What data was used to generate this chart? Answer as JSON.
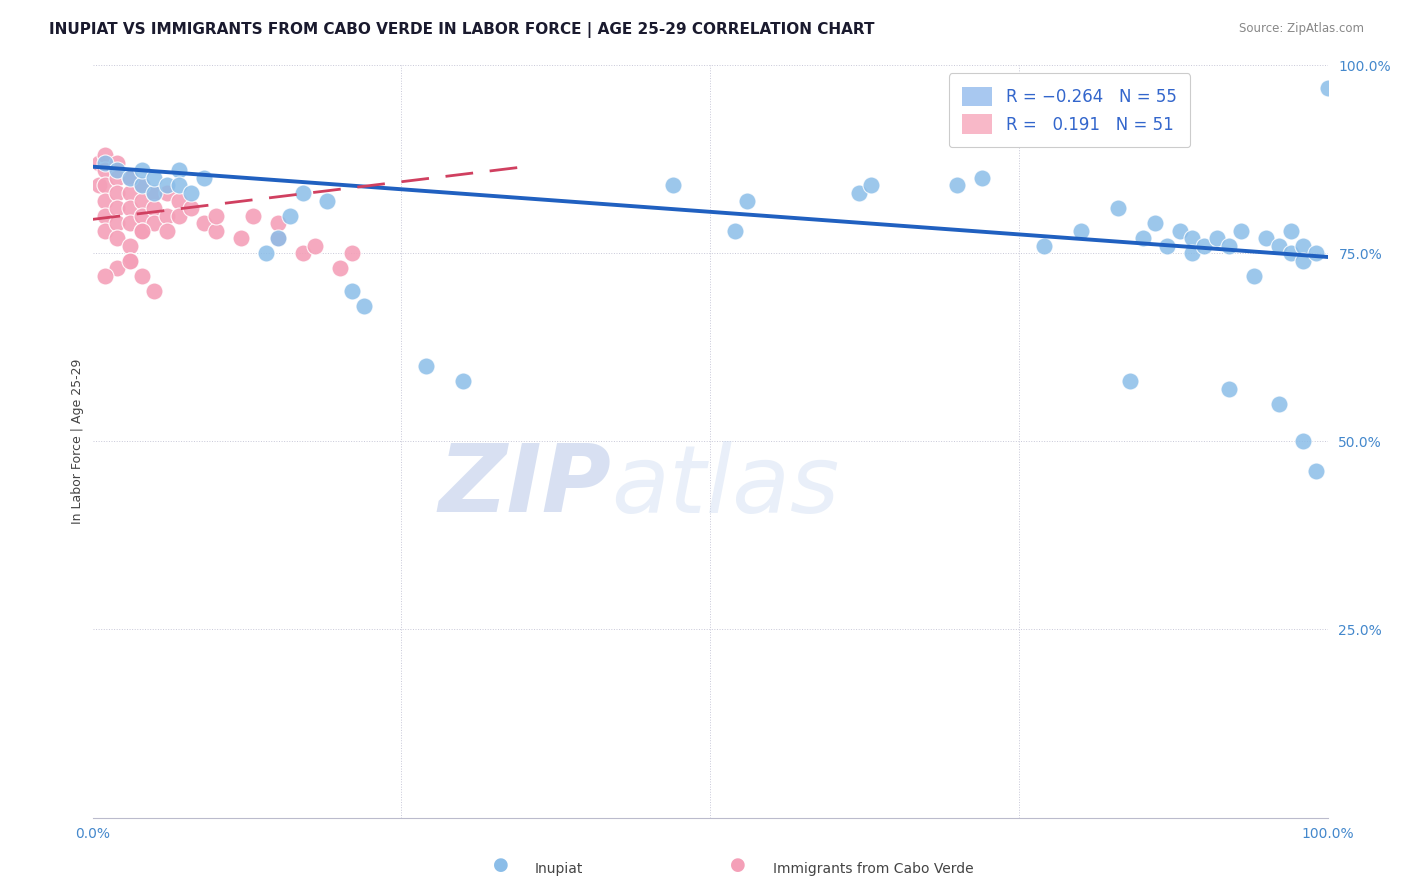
{
  "title": "INUPIAT VS IMMIGRANTS FROM CABO VERDE IN LABOR FORCE | AGE 25-29 CORRELATION CHART",
  "source": "Source: ZipAtlas.com",
  "ylabel": "In Labor Force | Age 25-29",
  "xlim": [
    0.0,
    1.0
  ],
  "ylim": [
    0.0,
    1.0
  ],
  "ytick_positions": [
    0.25,
    0.5,
    0.75,
    1.0
  ],
  "ytick_labels": [
    "25.0%",
    "50.0%",
    "75.0%",
    "100.0%"
  ],
  "blue_scatter_x": [
    0.01,
    0.02,
    0.03,
    0.04,
    0.04,
    0.05,
    0.05,
    0.06,
    0.07,
    0.07,
    0.08,
    0.09,
    0.14,
    0.15,
    0.16,
    0.17,
    0.19,
    0.21,
    0.22,
    0.27,
    0.3,
    0.47,
    0.52,
    0.53,
    0.62,
    0.63,
    0.7,
    0.72,
    0.77,
    0.8,
    0.83,
    0.85,
    0.86,
    0.87,
    0.88,
    0.89,
    0.89,
    0.9,
    0.91,
    0.92,
    0.93,
    0.94,
    0.95,
    0.96,
    0.97,
    0.97,
    0.98,
    0.98,
    0.99,
    1.0,
    0.84,
    0.92,
    0.96,
    0.98,
    0.99
  ],
  "blue_scatter_y": [
    0.87,
    0.86,
    0.85,
    0.84,
    0.86,
    0.83,
    0.85,
    0.84,
    0.86,
    0.84,
    0.83,
    0.85,
    0.75,
    0.77,
    0.8,
    0.83,
    0.82,
    0.7,
    0.68,
    0.6,
    0.58,
    0.84,
    0.78,
    0.82,
    0.83,
    0.84,
    0.84,
    0.85,
    0.76,
    0.78,
    0.81,
    0.77,
    0.79,
    0.76,
    0.78,
    0.77,
    0.75,
    0.76,
    0.77,
    0.76,
    0.78,
    0.72,
    0.77,
    0.76,
    0.78,
    0.75,
    0.76,
    0.74,
    0.75,
    0.97,
    0.58,
    0.57,
    0.55,
    0.5,
    0.46
  ],
  "pink_scatter_x": [
    0.005,
    0.005,
    0.01,
    0.01,
    0.01,
    0.01,
    0.01,
    0.01,
    0.02,
    0.02,
    0.02,
    0.02,
    0.02,
    0.03,
    0.03,
    0.03,
    0.03,
    0.04,
    0.04,
    0.04,
    0.04,
    0.05,
    0.05,
    0.05,
    0.06,
    0.06,
    0.06,
    0.07,
    0.07,
    0.08,
    0.09,
    0.1,
    0.1,
    0.12,
    0.13,
    0.15,
    0.15,
    0.17,
    0.18,
    0.2,
    0.21,
    0.02,
    0.03,
    0.04,
    0.03,
    0.04,
    0.05,
    0.02,
    0.01,
    0.03
  ],
  "pink_scatter_y": [
    0.87,
    0.84,
    0.88,
    0.86,
    0.84,
    0.82,
    0.8,
    0.78,
    0.87,
    0.85,
    0.83,
    0.81,
    0.79,
    0.85,
    0.83,
    0.81,
    0.79,
    0.84,
    0.82,
    0.8,
    0.78,
    0.83,
    0.81,
    0.79,
    0.83,
    0.8,
    0.78,
    0.82,
    0.8,
    0.81,
    0.79,
    0.78,
    0.8,
    0.77,
    0.8,
    0.77,
    0.79,
    0.75,
    0.76,
    0.73,
    0.75,
    0.77,
    0.76,
    0.78,
    0.74,
    0.72,
    0.7,
    0.73,
    0.72,
    0.74
  ],
  "blue_line_x": [
    0.0,
    1.0
  ],
  "blue_line_y": [
    0.865,
    0.745
  ],
  "pink_line_x": [
    0.0,
    0.35
  ],
  "pink_line_y": [
    0.795,
    0.865
  ],
  "scatter_color_blue": "#8bbde8",
  "scatter_color_pink": "#f4a0b8",
  "line_color_blue": "#2060c0",
  "line_color_pink": "#d04060",
  "grid_color": "#c8c8d8",
  "background_color": "#ffffff",
  "watermark_zip": "ZIP",
  "watermark_atlas": "atlas",
  "title_fontsize": 11,
  "axis_label_fontsize": 9,
  "legend_label_color": "#3366cc",
  "bottom_legend": [
    {
      "label": "Inupiat",
      "color": "#8bbde8"
    },
    {
      "label": "Immigrants from Cabo Verde",
      "color": "#f4a0b8"
    }
  ]
}
